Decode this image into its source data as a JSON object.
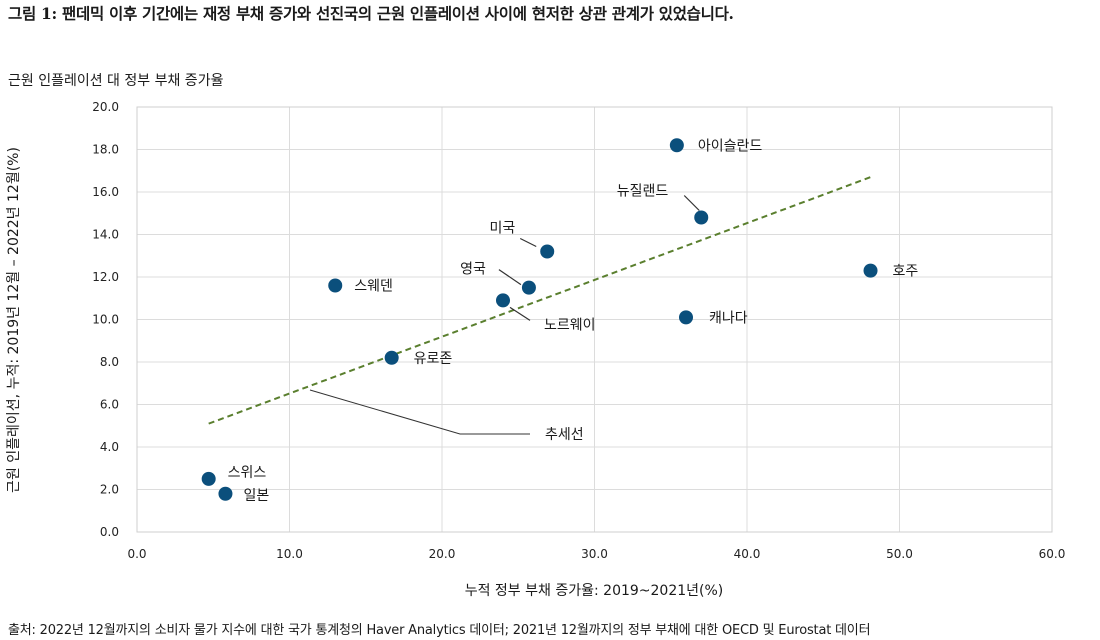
{
  "figure": {
    "title": "그림 1: 팬데믹 이후 기간에는 재정 부채 증가와 선진국의 근원 인플레이션 사이에 현저한 상관 관계가 있었습니다.",
    "subtitle": "근원 인플레이션 대 정부 부채 증가율",
    "source": "출처: 2022년 12월까지의 소비자 물가 지수에 대한 국가 통계청의 Haver Analytics 데이터; 2021년 12월까지의 정부 부채에 대한 OECD 및 Eurostat 데이터"
  },
  "chart_data": {
    "type": "scatter",
    "xlabel": "누적 정부 부채 증가율: 2019~2021년(%)",
    "ylabel": "근원 인플레이션, 누적: 2019년 12월 – 2022년 12월(%)",
    "xlim": [
      0,
      60
    ],
    "ylim": [
      0,
      20
    ],
    "x_ticks": [
      "0.0",
      "10.0",
      "20.0",
      "30.0",
      "40.0",
      "50.0",
      "60.0"
    ],
    "y_ticks": [
      "0.0",
      "2.0",
      "4.0",
      "6.0",
      "8.0",
      "10.0",
      "12.0",
      "14.0",
      "16.0",
      "18.0",
      "20.0"
    ],
    "grid": true,
    "point_color": "#0b4f7c",
    "trend_color": "#5a7f2e",
    "points": [
      {
        "label": "아이슬란드",
        "x": 35.4,
        "y": 18.2
      },
      {
        "label": "뉴질랜드",
        "x": 37.0,
        "y": 14.8
      },
      {
        "label": "미국",
        "x": 26.9,
        "y": 13.2
      },
      {
        "label": "호주",
        "x": 48.1,
        "y": 12.3
      },
      {
        "label": "스웨덴",
        "x": 13.0,
        "y": 11.6
      },
      {
        "label": "영국",
        "x": 25.7,
        "y": 11.5
      },
      {
        "label": "노르웨이",
        "x": 24.0,
        "y": 10.9
      },
      {
        "label": "캐나다",
        "x": 36.0,
        "y": 10.1
      },
      {
        "label": "유로존",
        "x": 16.7,
        "y": 8.2
      },
      {
        "label": "스위스",
        "x": 4.7,
        "y": 2.5
      },
      {
        "label": "일본",
        "x": 5.8,
        "y": 1.8
      }
    ],
    "trendline": {
      "label": "추세선",
      "x": [
        4.7,
        48.1
      ],
      "y": [
        5.1,
        16.7
      ]
    }
  }
}
